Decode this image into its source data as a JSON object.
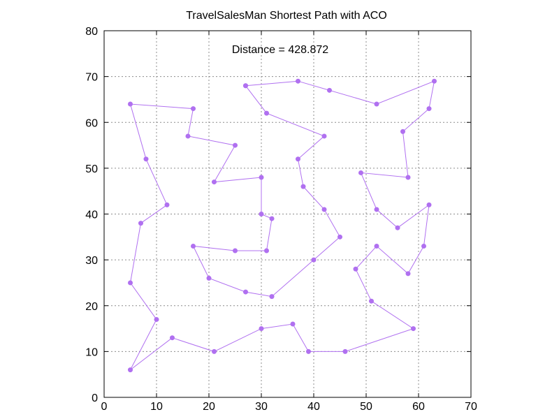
{
  "chart_data": {
    "type": "line",
    "title": "TravelSalesMan Shortest Path with ACO",
    "xlabel": "",
    "ylabel": "",
    "annotation": "Distance = 428.872",
    "xlim": [
      0,
      70
    ],
    "ylim": [
      0,
      80
    ],
    "xticks": [
      0,
      10,
      20,
      30,
      40,
      50,
      60,
      70
    ],
    "yticks": [
      0,
      10,
      20,
      30,
      40,
      50,
      60,
      70,
      80
    ],
    "grid": true,
    "legend": "none",
    "color": "#b070f0",
    "series": [
      {
        "x": [
          27,
          37,
          43,
          52,
          63,
          62,
          57,
          58,
          49,
          52,
          56,
          62,
          61,
          58,
          52,
          48,
          51,
          59,
          46,
          39,
          36,
          30,
          21,
          13,
          5,
          10,
          5,
          7,
          12,
          8,
          5,
          17,
          16,
          25,
          21,
          30,
          30,
          32,
          31,
          25,
          17,
          20,
          27,
          32,
          40,
          45,
          42,
          38,
          37,
          42,
          31,
          27
        ],
        "y": [
          68,
          69,
          67,
          64,
          69,
          63,
          58,
          48,
          49,
          41,
          37,
          42,
          33,
          27,
          33,
          28,
          21,
          15,
          10,
          10,
          16,
          15,
          10,
          13,
          6,
          17,
          25,
          38,
          42,
          52,
          64,
          63,
          57,
          55,
          47,
          48,
          40,
          39,
          32,
          32,
          33,
          26,
          23,
          22,
          30,
          35,
          41,
          46,
          52,
          57,
          62,
          68
        ]
      }
    ]
  }
}
